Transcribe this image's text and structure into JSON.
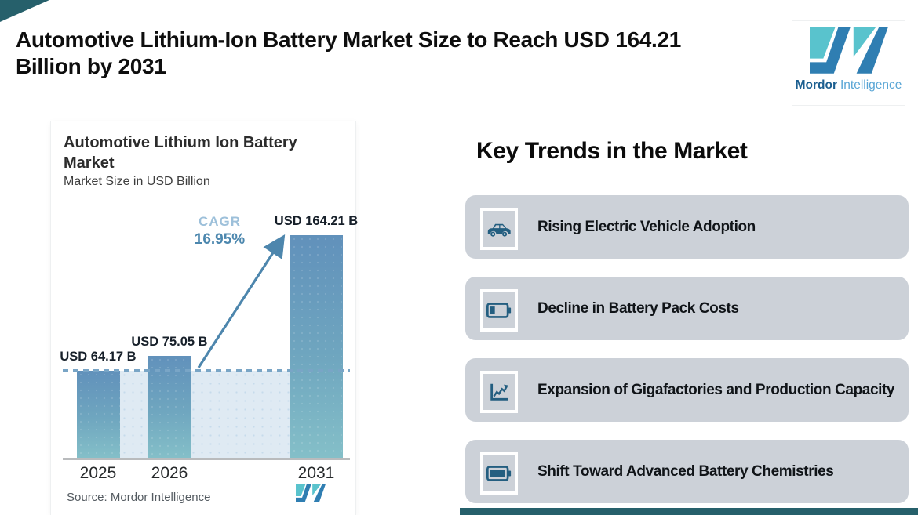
{
  "page": {
    "background": "#ffffff",
    "accent_color": "#26606b",
    "title_line1": "Automotive Lithium-Ion Battery Market Size to Reach USD 164.21",
    "title_line2": "Billion by 2031"
  },
  "logo": {
    "brand_bold": "Mordor",
    "brand_light": "Intelligence",
    "mark_icon": "mordor-m-mark",
    "teal": "#59c3cd",
    "blue": "#2f7eb2"
  },
  "chart": {
    "title": "Automotive Lithium Ion Battery Market",
    "subtitle": "Market Size in USD Billion",
    "cagr_label": "CAGR",
    "cagr_value": "16.95%",
    "source": "Source: Mordor Intelligence"
  },
  "chart_data": {
    "type": "bar",
    "title": "Automotive Lithium Ion Battery Market",
    "ylabel": "Market Size in USD Billion",
    "categories": [
      "2025",
      "2026",
      "2031"
    ],
    "values": [
      64.17,
      75.05,
      164.21
    ],
    "value_labels": [
      "USD 64.17 B",
      "USD 75.05 B",
      "USD 164.21 B"
    ],
    "cagr_percent": 16.95,
    "annotations": [
      "CAGR",
      "16.95%"
    ],
    "baseline_dashed_at_value": 64.17,
    "bar_color_top": "#6191bb",
    "bar_color_bottom": "#84bfc8",
    "band_color": "#dfeaf3",
    "grid": false,
    "legend": false,
    "source": "Source: Mordor Intelligence"
  },
  "key_trends": {
    "heading": "Key Trends in the Market",
    "items": [
      {
        "label": "Rising Electric Vehicle Adoption",
        "icon": "car-icon"
      },
      {
        "label": "Decline in Battery Pack Costs",
        "icon": "battery-low-icon"
      },
      {
        "label": "Expansion of Gigafactories and Production Capacity",
        "icon": "growth-chart-icon"
      },
      {
        "label": "Shift Toward Advanced Battery Chemistries",
        "icon": "battery-full-icon"
      }
    ]
  }
}
